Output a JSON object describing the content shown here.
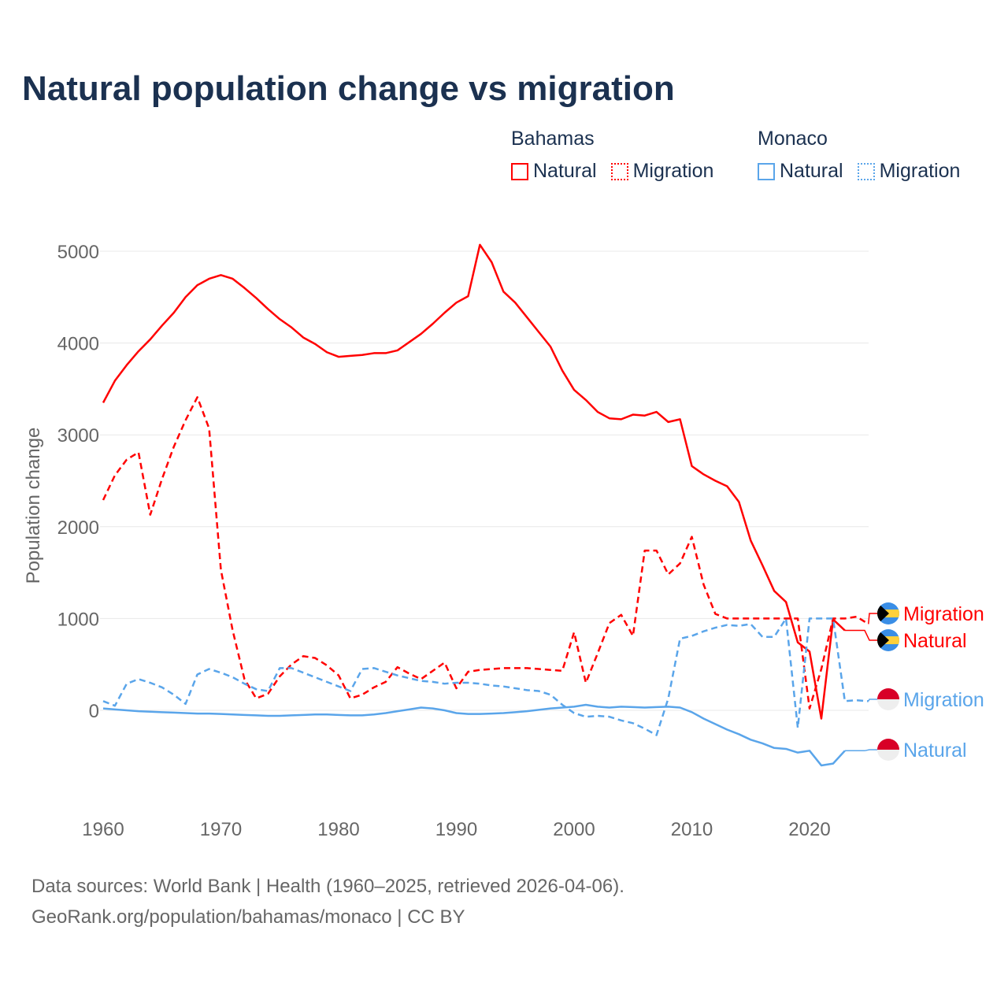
{
  "title": "Natural population change vs migration",
  "legend": {
    "groups": [
      {
        "name": "Bahamas",
        "items": [
          {
            "label": "Natural",
            "style": "solid",
            "color": "#ff0000"
          },
          {
            "label": "Migration",
            "style": "dotted",
            "color": "#ff0000"
          }
        ]
      },
      {
        "name": "Monaco",
        "items": [
          {
            "label": "Natural",
            "style": "solid",
            "color": "#5aa5ea"
          },
          {
            "label": "Migration",
            "style": "dotted",
            "color": "#5aa5ea"
          }
        ]
      }
    ]
  },
  "chart_data": {
    "type": "line",
    "title": "Natural population change vs migration",
    "xlabel": "",
    "ylabel": "Population change",
    "xlim": [
      1960,
      2025
    ],
    "ylim": [
      -1000,
      5000
    ],
    "xticks": [
      "1960",
      "1970",
      "1980",
      "1990",
      "2000",
      "2010",
      "2020"
    ],
    "yticks": [
      "0",
      "1000",
      "2000",
      "3000",
      "4000",
      "5000"
    ],
    "grid": true,
    "series": [
      {
        "name": "Bahamas Natural",
        "end_label": "Natural",
        "country": "Bahamas",
        "color": "#ff0000",
        "dash": false,
        "start": 1960,
        "values": [
          3350,
          3590,
          3760,
          3910,
          4040,
          4190,
          4330,
          4500,
          4630,
          4700,
          4740,
          4700,
          4600,
          4490,
          4370,
          4260,
          4170,
          4060,
          3990,
          3900,
          3850,
          3860,
          3870,
          3890,
          3890,
          3920,
          4010,
          4100,
          4210,
          4330,
          4440,
          4510,
          5070,
          4880,
          4560,
          4440,
          4280,
          4120,
          3960,
          3700,
          3490,
          3380,
          3250,
          3180,
          3170,
          3220,
          3210,
          3250,
          3140,
          3170,
          2660,
          2570,
          2500,
          2440,
          2270,
          1850,
          1580,
          1300,
          1180,
          740,
          640,
          -90,
          990,
          870
        ]
      },
      {
        "name": "Bahamas Migration",
        "end_label": "Migration",
        "country": "Bahamas",
        "color": "#ff0000",
        "dash": true,
        "start": 1960,
        "values": [
          2290,
          2560,
          2730,
          2810,
          2130,
          2520,
          2870,
          3160,
          3410,
          3070,
          1530,
          870,
          340,
          130,
          180,
          370,
          500,
          590,
          570,
          490,
          380,
          130,
          170,
          250,
          310,
          470,
          400,
          340,
          430,
          520,
          240,
          420,
          440,
          450,
          460,
          460,
          460,
          450,
          440,
          430,
          850,
          300,
          620,
          950,
          1040,
          810,
          1740,
          1740,
          1480,
          1600,
          1890,
          1370,
          1050,
          1000,
          1000,
          1000,
          1000,
          1000,
          1000,
          1000,
          20,
          450,
          1000,
          1000,
          1020,
          940
        ]
      },
      {
        "name": "Monaco Natural",
        "end_label": "Natural",
        "country": "Monaco",
        "color": "#5aa5ea",
        "dash": false,
        "start": 1960,
        "values": [
          20,
          10,
          0,
          -10,
          -15,
          -20,
          -25,
          -30,
          -35,
          -35,
          -40,
          -45,
          -50,
          -55,
          -60,
          -60,
          -55,
          -50,
          -45,
          -45,
          -50,
          -55,
          -55,
          -45,
          -30,
          -10,
          10,
          30,
          20,
          0,
          -30,
          -40,
          -40,
          -35,
          -30,
          -20,
          -10,
          5,
          20,
          30,
          40,
          60,
          40,
          30,
          40,
          35,
          30,
          35,
          40,
          30,
          -20,
          -90,
          -150,
          -210,
          -260,
          -320,
          -360,
          -410,
          -420,
          -460,
          -440,
          -600,
          -580,
          -440
        ]
      },
      {
        "name": "Monaco Migration",
        "end_label": "Migration",
        "country": "Monaco",
        "color": "#5aa5ea",
        "dash": true,
        "start": 1960,
        "values": [
          100,
          50,
          290,
          340,
          300,
          250,
          170,
          70,
          390,
          450,
          410,
          360,
          290,
          230,
          210,
          460,
          460,
          410,
          360,
          310,
          260,
          210,
          450,
          460,
          420,
          380,
          350,
          320,
          310,
          290,
          300,
          300,
          290,
          270,
          260,
          240,
          220,
          210,
          170,
          60,
          -30,
          -70,
          -60,
          -70,
          -110,
          -140,
          -200,
          -270,
          130,
          780,
          810,
          860,
          900,
          930,
          920,
          940,
          800,
          800,
          1000,
          -190,
          1000,
          1000,
          1000,
          100,
          110,
          100
        ]
      }
    ]
  },
  "footer": {
    "line1": "Data sources: World Bank | Health (1960–2025, retrieved 2026-04-06).",
    "line2": "GeoRank.org/population/bahamas/monaco | CC BY"
  }
}
